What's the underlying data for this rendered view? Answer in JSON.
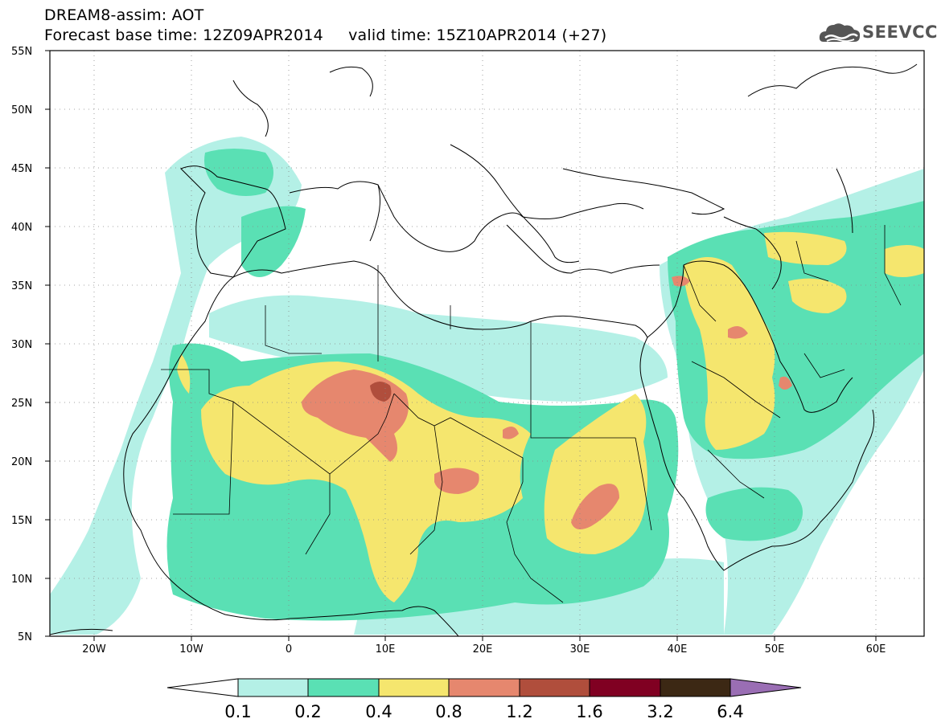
{
  "header": {
    "title_line1": "DREAM8-assim: AOT",
    "title_line2": "Forecast base time: 12Z09APR2014     valid time: 15Z10APR2014 (+27)",
    "logo_text": "SEEVCCC"
  },
  "map": {
    "projection": "lat-lon",
    "lon_range": [
      -25,
      65
    ],
    "lat_range": [
      5,
      55
    ],
    "lat_labels": [
      "55N",
      "50N",
      "45N",
      "40N",
      "35N",
      "30N",
      "25N",
      "20N",
      "15N",
      "10N",
      "5N"
    ],
    "lon_labels": [
      "20W",
      "10W",
      "0",
      "10E",
      "20E",
      "30E",
      "40E",
      "50E",
      "60E"
    ],
    "variable": "AOT",
    "dust_bands": [
      "0.1-0.2",
      "0.2-0.4",
      "0.4-0.8",
      "0.8-1.2",
      "1.2-1.6",
      "1.6-3.2"
    ]
  },
  "colorbar": {
    "labels": [
      "0.1",
      "0.2",
      "0.4",
      "0.8",
      "1.2",
      "1.6",
      "3.2",
      "6.4"
    ],
    "colors": {
      "under": "#ffffff",
      "c1": "#b4f0e6",
      "c2": "#5ae0b4",
      "c3": "#f5e66e",
      "c4": "#e6876e",
      "c5": "#b04e3c",
      "c6": "#800022",
      "c7": "#3c2814",
      "over": "#9a6eb4"
    }
  }
}
